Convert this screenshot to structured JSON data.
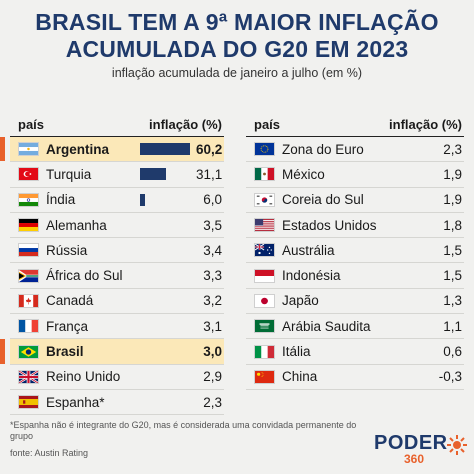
{
  "title_line1": "BRASIL TEM A 9ª MAIOR INFLAÇÃO",
  "title_line2": "ACUMULADA DO G20 EM 2023",
  "subtitle": "inflação acumulada de janeiro a julho (em %)",
  "colors": {
    "navy": "#1f3a6b",
    "highlight": "#fbe8b8",
    "accent": "#e8612c"
  },
  "chart_data": {
    "type": "table",
    "title": "BRASIL TEM A 9ª MAIOR INFLAÇÃO ACUMULADA DO G20 EM 2023",
    "subtitle": "inflação acumulada de janeiro a julho (em %)",
    "columns": [
      "país",
      "inflação (%)"
    ],
    "bar_max": 60.2,
    "left": [
      {
        "country": "Argentina",
        "value": "60,2",
        "num": 60.2,
        "flag": "argentina-flag",
        "highlight": true,
        "bar": true
      },
      {
        "country": "Turquia",
        "value": "31,1",
        "num": 31.1,
        "flag": "turkey-flag",
        "highlight": false,
        "bar": true
      },
      {
        "country": "Índia",
        "value": "6,0",
        "num": 6.0,
        "flag": "india-flag",
        "highlight": false,
        "bar": true
      },
      {
        "country": "Alemanha",
        "value": "3,5",
        "num": 3.5,
        "flag": "germany-flag",
        "highlight": false,
        "bar": false
      },
      {
        "country": "Rússia",
        "value": "3,4",
        "num": 3.4,
        "flag": "russia-flag",
        "highlight": false,
        "bar": false
      },
      {
        "country": "África do Sul",
        "value": "3,3",
        "num": 3.3,
        "flag": "south-africa-flag",
        "highlight": false,
        "bar": false
      },
      {
        "country": "Canadá",
        "value": "3,2",
        "num": 3.2,
        "flag": "canada-flag",
        "highlight": false,
        "bar": false
      },
      {
        "country": "França",
        "value": "3,1",
        "num": 3.1,
        "flag": "france-flag",
        "highlight": false,
        "bar": false
      },
      {
        "country": "Brasil",
        "value": "3,0",
        "num": 3.0,
        "flag": "brazil-flag",
        "highlight": true,
        "bar": false
      },
      {
        "country": "Reino Unido",
        "value": "2,9",
        "num": 2.9,
        "flag": "uk-flag",
        "highlight": false,
        "bar": false
      },
      {
        "country": "Espanha*",
        "value": "2,3",
        "num": 2.3,
        "flag": "spain-flag",
        "highlight": false,
        "bar": false
      }
    ],
    "right": [
      {
        "country": "Zona do Euro",
        "value": "2,3",
        "num": 2.3,
        "flag": "eu-flag"
      },
      {
        "country": "México",
        "value": "1,9",
        "num": 1.9,
        "flag": "mexico-flag"
      },
      {
        "country": "Coreia do Sul",
        "value": "1,9",
        "num": 1.9,
        "flag": "south-korea-flag"
      },
      {
        "country": "Estados Unidos",
        "value": "1,8",
        "num": 1.8,
        "flag": "usa-flag"
      },
      {
        "country": "Austrália",
        "value": "1,5",
        "num": 1.5,
        "flag": "australia-flag"
      },
      {
        "country": "Indonésia",
        "value": "1,5",
        "num": 1.5,
        "flag": "indonesia-flag"
      },
      {
        "country": "Japão",
        "value": "1,3",
        "num": 1.3,
        "flag": "japan-flag"
      },
      {
        "country": "Arábia Saudita",
        "value": "1,1",
        "num": 1.1,
        "flag": "saudi-arabia-flag"
      },
      {
        "country": "Itália",
        "value": "0,6",
        "num": 0.6,
        "flag": "italy-flag"
      },
      {
        "country": "China",
        "value": "-0,3",
        "num": -0.3,
        "flag": "china-flag"
      }
    ]
  },
  "footnote": "*Espanha não é integrante do G20, mas é considerada uma convidada permanente do grupo",
  "source": "fonte: Austin Rating",
  "logo": {
    "main": "PODER",
    "sub": "360"
  }
}
